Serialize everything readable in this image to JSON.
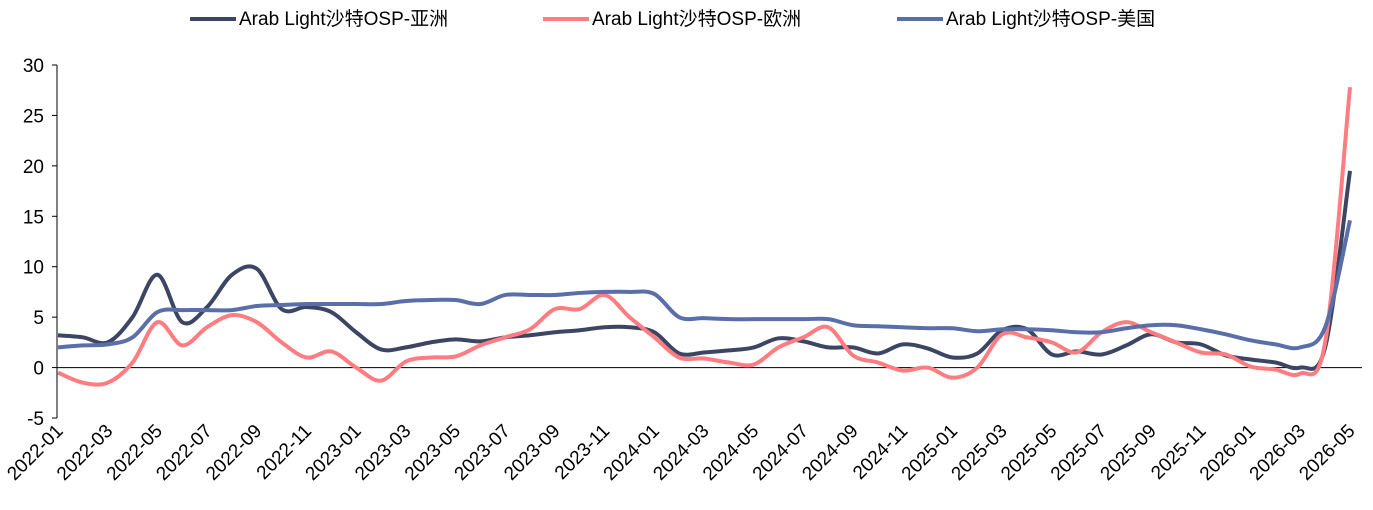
{
  "chart_data": {
    "type": "line",
    "categories": [
      "2022-01",
      null,
      "2022-03",
      null,
      "2022-05",
      null,
      "2022-07",
      null,
      "2022-09",
      null,
      "2022-11",
      null,
      "2023-01",
      null,
      "2023-03",
      null,
      "2023-05",
      null,
      "2023-07",
      null,
      "2023-09",
      null,
      "2023-11",
      null,
      "2024-01",
      null,
      "2024-03",
      null,
      "2024-05",
      null,
      "2024-07",
      null,
      "2024-09",
      null,
      "2024-11",
      null,
      "2025-01",
      null,
      "2025-03",
      null,
      "2025-05",
      null,
      "2025-07",
      null,
      "2025-09",
      null,
      "2025-11",
      null,
      "2026-01",
      null,
      "2026-03",
      null,
      "2026-05"
    ],
    "series": [
      {
        "name": "Arab Light沙特OSP-亚洲",
        "color": "#3c4563",
        "values": [
          3.2,
          3.0,
          2.5,
          5.0,
          9.2,
          4.5,
          6.0,
          9.2,
          9.8,
          5.8,
          6.0,
          5.5,
          3.5,
          1.8,
          2.0,
          2.5,
          2.8,
          2.6,
          3.0,
          3.2,
          3.5,
          3.7,
          4.0,
          4.0,
          3.5,
          1.4,
          1.5,
          1.7,
          2.0,
          2.9,
          2.6,
          2.0,
          2.0,
          1.4,
          2.3,
          1.9,
          1.0,
          1.4,
          3.7,
          3.8,
          1.3,
          1.6,
          1.3,
          2.2,
          3.3,
          2.5,
          2.3,
          1.2,
          0.8,
          0.5,
          0.0,
          2.0,
          19.5
        ]
      },
      {
        "name": "Arab Light沙特OSP-欧洲",
        "color": "#ff7c80",
        "values": [
          -0.5,
          -1.5,
          -1.5,
          0.5,
          4.5,
          2.2,
          4.0,
          5.2,
          4.5,
          2.5,
          1.0,
          1.6,
          0.0,
          -1.3,
          0.6,
          1.0,
          1.1,
          2.2,
          3.0,
          3.8,
          5.8,
          5.8,
          7.2,
          5.0,
          3.0,
          1.0,
          0.9,
          0.5,
          0.3,
          2.0,
          3.0,
          4.0,
          1.2,
          0.5,
          -0.3,
          0.0,
          -1.0,
          0.0,
          3.3,
          3.0,
          2.5,
          1.5,
          3.5,
          4.5,
          3.5,
          2.5,
          1.5,
          1.3,
          0.1,
          -0.2,
          -0.6,
          2.5,
          27.8
        ]
      },
      {
        "name": "Arab Light沙特OSP-美国",
        "color": "#5a6eaa",
        "values": [
          2.0,
          2.2,
          2.3,
          3.0,
          5.5,
          5.7,
          5.7,
          5.7,
          6.1,
          6.2,
          6.3,
          6.3,
          6.3,
          6.3,
          6.6,
          6.7,
          6.7,
          6.3,
          7.2,
          7.2,
          7.2,
          7.4,
          7.5,
          7.5,
          7.3,
          5.0,
          4.9,
          4.8,
          4.8,
          4.8,
          4.8,
          4.8,
          4.2,
          4.1,
          4.0,
          3.9,
          3.9,
          3.6,
          3.8,
          3.8,
          3.7,
          3.5,
          3.5,
          3.9,
          4.2,
          4.2,
          3.8,
          3.3,
          2.7,
          2.3,
          2.0,
          4.0,
          14.6
        ]
      }
    ],
    "ylim": [
      -5,
      30
    ],
    "yticks": [
      -5,
      0,
      5,
      10,
      15,
      20,
      25,
      30
    ],
    "legend": "top",
    "grid": false
  }
}
